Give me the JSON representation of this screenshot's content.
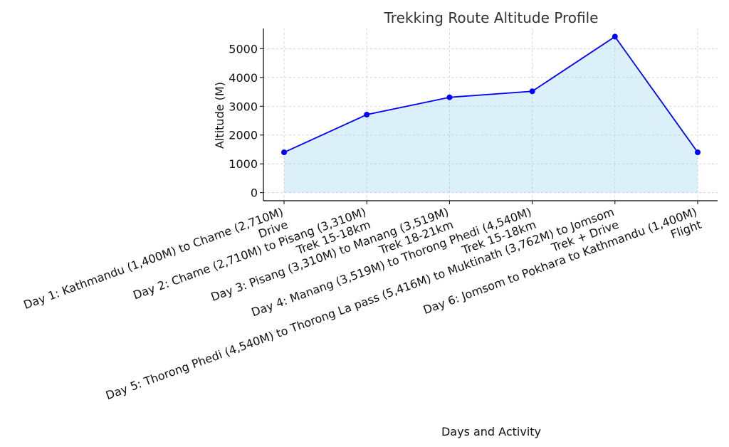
{
  "chart_data": {
    "type": "area",
    "title": "Trekking Route Altitude Profile",
    "xlabel": "Days and Activity",
    "ylabel": "Altitude (M)",
    "categories": [
      [
        "Day 1: Kathmandu (1,400M) to Chame (2,710M)",
        "Drive"
      ],
      [
        "Day 2: Chame (2,710M) to Pisang (3,310M)",
        "Trek 15-18km"
      ],
      [
        "Day 3: Pisang (3,310M) to Manang (3,519M)",
        "Trek 18-21km"
      ],
      [
        "Day 4: Manang (3,519M) to Thorong Phedi (4,540M)",
        "Trek 15-18km"
      ],
      [
        "Day 5: Thorong Phedi (4,540M) to Thorong La pass (5,416M) to Muktinath (3,762M) to Jomsom",
        "Trek + Drive"
      ],
      [
        "Day 6: Jomsom to Pokhara to Kathmandu (1,400M)",
        "Flight"
      ]
    ],
    "series": [
      {
        "values": [
          1400,
          2710,
          3310,
          3519,
          5416,
          1400
        ]
      }
    ],
    "yticks": [
      0,
      1000,
      2000,
      3000,
      4000,
      5000
    ],
    "ylim": [
      -280,
      5700
    ],
    "grid": true,
    "colors": {
      "line": "#0000ff",
      "fill": "#87ceeb",
      "marker": "#0000ff"
    }
  }
}
